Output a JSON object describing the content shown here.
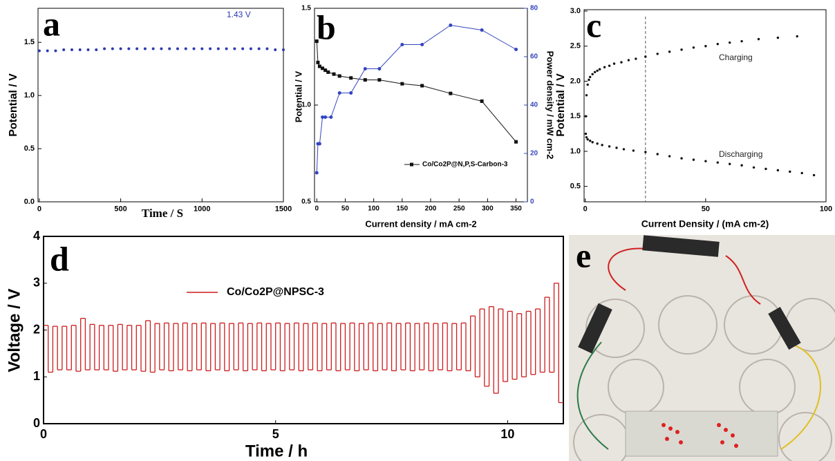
{
  "chart_data": [
    {
      "type": "scatter",
      "panel_label": "a",
      "x_label": "Time / S",
      "y_label": "Potential / V",
      "xlim": [
        -8,
        1500
      ],
      "xticks": [
        0,
        500,
        1000,
        1500
      ],
      "ylim": [
        0,
        1.82
      ],
      "yticks": [
        {
          "value": 0,
          "label": "0.0"
        },
        0.5,
        {
          "value": 1,
          "label": "1.0"
        },
        1.5
      ],
      "annotations": [
        {
          "text": "1.43 V",
          "color": "#2a3ab0"
        }
      ],
      "series": [
        {
          "color": "#2a3ab0",
          "marker_size": 2,
          "x": [
            0,
            50,
            100,
            150,
            200,
            250,
            300,
            350,
            400,
            450,
            500,
            550,
            600,
            650,
            700,
            750,
            800,
            850,
            900,
            950,
            1000,
            1050,
            1100,
            1150,
            1200,
            1250,
            1300,
            1350,
            1400,
            1450,
            1500
          ],
          "values": [
            1.42,
            1.42,
            1.42,
            1.43,
            1.43,
            1.43,
            1.43,
            1.43,
            1.44,
            1.44,
            1.44,
            1.44,
            1.44,
            1.44,
            1.44,
            1.44,
            1.44,
            1.44,
            1.44,
            1.44,
            1.44,
            1.44,
            1.44,
            1.44,
            1.44,
            1.44,
            1.44,
            1.44,
            1.44,
            1.43,
            1.43
          ]
        }
      ]
    },
    {
      "type": "line",
      "panel_label": "b",
      "x_label": "Current density / mA cm-2",
      "y_label": "Potential / V",
      "y2_label": "Power density / mW cm-2",
      "xlim": [
        -4,
        370
      ],
      "xticks": [
        0,
        50,
        100,
        150,
        200,
        250,
        300,
        350
      ],
      "ylim": [
        0.5,
        1.5
      ],
      "yticks": [
        0.5,
        {
          "value": 1,
          "label": "1.0"
        },
        1.5
      ],
      "y2lim": [
        0,
        80
      ],
      "y2ticks": [
        0,
        20,
        40,
        60,
        80
      ],
      "legend": "lower right",
      "series": [
        {
          "name": "Co/Co2P@N,P,S-Carbon-3",
          "color": "#111111",
          "marker": "square",
          "x": [
            0,
            2,
            5,
            10,
            15,
            20,
            30,
            40,
            60,
            85,
            110,
            150,
            185,
            235,
            290,
            350
          ],
          "values": [
            1.33,
            1.22,
            1.2,
            1.19,
            1.18,
            1.17,
            1.16,
            1.15,
            1.14,
            1.13,
            1.13,
            1.11,
            1.1,
            1.06,
            1.02,
            0.81
          ]
        },
        {
          "color": "#3345c0",
          "marker": "circle",
          "axis": "y2",
          "x": [
            0,
            2,
            5,
            10,
            15,
            25,
            40,
            60,
            85,
            110,
            150,
            185,
            235,
            290,
            350
          ],
          "values": [
            12,
            24,
            24,
            35,
            35,
            35,
            45,
            45,
            55,
            55,
            65,
            65,
            73,
            71,
            63
          ]
        }
      ]
    },
    {
      "type": "scatter",
      "panel_label": "c",
      "x_label": "Current Density / (mA cm-2)",
      "y_label": "Potential / V",
      "xlim": [
        -0.5,
        100
      ],
      "xticks": [
        0,
        50,
        100
      ],
      "ylim": [
        0.28,
        3.02
      ],
      "yticks": [
        0.5,
        {
          "value": 1,
          "label": "1.0"
        },
        1.5,
        {
          "value": 2,
          "label": "2.0"
        },
        2.5,
        {
          "value": 3,
          "label": "3.0"
        }
      ],
      "reference_line_x": 25,
      "annotations": [
        {
          "text": "Charging",
          "color": "#222222"
        },
        {
          "text": "Discharging",
          "color": "#222222"
        }
      ],
      "series": [
        {
          "color": "#111111",
          "marker_size": 1.7,
          "x": [
            0.2,
            0.5,
            1,
            1.5,
            2,
            3,
            4,
            5,
            6,
            8,
            10,
            12,
            15,
            18,
            21,
            25,
            30,
            35,
            40,
            45,
            50,
            55,
            60,
            65,
            72,
            80,
            88
          ],
          "values": [
            1.5,
            1.8,
            1.95,
            2.02,
            2.06,
            2.1,
            2.13,
            2.15,
            2.17,
            2.2,
            2.22,
            2.25,
            2.27,
            2.3,
            2.32,
            2.35,
            2.39,
            2.42,
            2.45,
            2.48,
            2.5,
            2.53,
            2.55,
            2.57,
            2.6,
            2.62,
            2.64
          ]
        },
        {
          "color": "#111111",
          "marker_size": 1.7,
          "x": [
            0.2,
            0.5,
            1,
            2,
            3,
            5,
            7,
            10,
            13,
            16,
            20,
            25,
            30,
            35,
            40,
            45,
            50,
            55,
            60,
            65,
            70,
            75,
            80,
            85,
            90,
            95
          ],
          "values": [
            1.25,
            1.2,
            1.17,
            1.15,
            1.13,
            1.11,
            1.09,
            1.07,
            1.05,
            1.03,
            1.01,
            0.99,
            0.96,
            0.93,
            0.9,
            0.88,
            0.86,
            0.84,
            0.82,
            0.8,
            0.77,
            0.75,
            0.73,
            0.71,
            0.69,
            0.66
          ]
        }
      ]
    },
    {
      "type": "step",
      "panel_label": "d",
      "x_label": "Time / h",
      "y_label": "Voltage / V",
      "xlim": [
        0,
        11.2
      ],
      "xticks": [
        0,
        5,
        10
      ],
      "ylim": [
        0,
        4
      ],
      "yticks": [
        0,
        1,
        2,
        3,
        4
      ],
      "legend": "upper left",
      "series": [
        {
          "name": "Co/Co2P@NPSC-3",
          "color": "#cc1a1a",
          "x": [
            0,
            0.1,
            0.2,
            0.3,
            0.4,
            0.5,
            0.6,
            0.7,
            0.8,
            0.9,
            1,
            1.1,
            1.2,
            1.3,
            1.4,
            1.5,
            1.6,
            1.7,
            1.8,
            1.9,
            2,
            2.1,
            2.2,
            2.3,
            2.4,
            2.5,
            2.6,
            2.7,
            2.8,
            2.9,
            3,
            3.1,
            3.2,
            3.3,
            3.4,
            3.5,
            3.6,
            3.7,
            3.8,
            3.9,
            4,
            4.1,
            4.2,
            4.3,
            4.4,
            4.5,
            4.6,
            4.7,
            4.8,
            4.9,
            5,
            5.1,
            5.2,
            5.3,
            5.4,
            5.5,
            5.6,
            5.7,
            5.8,
            5.9,
            6,
            6.1,
            6.2,
            6.3,
            6.4,
            6.5,
            6.6,
            6.7,
            6.8,
            6.9,
            7,
            7.1,
            7.2,
            7.3,
            7.4,
            7.5,
            7.6,
            7.7,
            7.8,
            7.9,
            8,
            8.1,
            8.2,
            8.3,
            8.4,
            8.5,
            8.6,
            8.7,
            8.8,
            8.9,
            9,
            9.1,
            9.2,
            9.3,
            9.4,
            9.5,
            9.6,
            9.7,
            9.8,
            9.9,
            10,
            10.1,
            10.2,
            10.3,
            10.4,
            10.5,
            10.6,
            10.7,
            10.8,
            10.9,
            11,
            11.1
          ],
          "values": [
            2.1,
            1.1,
            2.08,
            1.15,
            2.08,
            1.15,
            2.1,
            1.12,
            2.25,
            1.15,
            2.12,
            1.15,
            2.1,
            1.15,
            2.1,
            1.12,
            2.12,
            1.15,
            2.1,
            1.15,
            2.1,
            1.12,
            2.2,
            1.1,
            2.14,
            1.15,
            2.15,
            1.13,
            2.14,
            1.15,
            2.15,
            1.13,
            2.14,
            1.15,
            2.15,
            1.13,
            2.14,
            1.15,
            2.15,
            1.13,
            2.14,
            1.15,
            2.15,
            1.13,
            2.14,
            1.15,
            2.15,
            1.13,
            2.14,
            1.15,
            2.15,
            1.13,
            2.14,
            1.15,
            2.15,
            1.13,
            2.14,
            1.15,
            2.15,
            1.13,
            2.14,
            1.15,
            2.15,
            1.13,
            2.14,
            1.15,
            2.15,
            1.13,
            2.14,
            1.15,
            2.15,
            1.13,
            2.14,
            1.15,
            2.15,
            1.13,
            2.14,
            1.15,
            2.15,
            1.13,
            2.14,
            1.15,
            2.15,
            1.13,
            2.14,
            1.15,
            2.15,
            1.13,
            2.14,
            1.15,
            2.15,
            1.13,
            2.3,
            1.0,
            2.45,
            0.8,
            2.5,
            0.65,
            2.45,
            0.9,
            2.4,
            0.95,
            2.35,
            1.0,
            2.4,
            1.05,
            2.45,
            1.1,
            2.7,
            1.1,
            3.0,
            0.45
          ]
        }
      ]
    }
  ],
  "photo": {
    "panel_label": "e"
  }
}
